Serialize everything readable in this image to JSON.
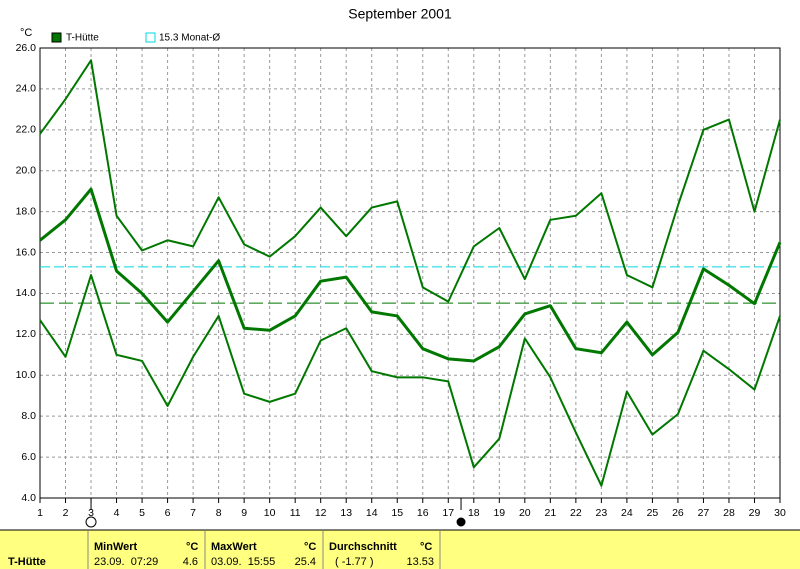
{
  "chart_data": {
    "type": "line",
    "title": "September 2001",
    "y_unit": "°C",
    "x": [
      1,
      2,
      3,
      4,
      5,
      6,
      7,
      8,
      9,
      10,
      11,
      12,
      13,
      14,
      15,
      16,
      17,
      18,
      19,
      20,
      21,
      22,
      23,
      24,
      25,
      26,
      27,
      28,
      29,
      30
    ],
    "xlim": [
      1,
      30
    ],
    "ylim": [
      4,
      26
    ],
    "yticks": [
      {
        "value": 4,
        "label": "4.0"
      },
      {
        "value": 6,
        "label": "6.0"
      },
      {
        "value": 8,
        "label": "8.0"
      },
      {
        "value": 10,
        "label": "10.0"
      },
      {
        "value": 12,
        "label": "12.0"
      },
      {
        "value": 14,
        "label": "14.0"
      },
      {
        "value": 16,
        "label": "16.0"
      },
      {
        "value": 18,
        "label": "18.0"
      },
      {
        "value": 20,
        "label": "20.0"
      },
      {
        "value": 22,
        "label": "22.0"
      },
      {
        "value": 24,
        "label": "24.0"
      },
      {
        "value": 26,
        "label": "26.0"
      }
    ],
    "grid": true,
    "series": [
      {
        "name": "T-Hütte",
        "color": "#007800",
        "values": [
          16.6,
          17.6,
          19.1,
          15.1,
          14.0,
          12.6,
          14.1,
          15.6,
          12.3,
          12.2,
          12.9,
          14.6,
          14.8,
          13.1,
          12.9,
          11.3,
          10.8,
          10.7,
          11.4,
          13.0,
          13.4,
          11.3,
          11.1,
          12.6,
          11.0,
          12.1,
          15.2,
          14.4,
          13.5,
          16.5
        ],
        "max": [
          21.8,
          23.5,
          25.4,
          17.8,
          16.1,
          16.6,
          16.3,
          18.7,
          16.4,
          15.8,
          16.8,
          18.2,
          16.8,
          18.2,
          18.5,
          14.3,
          13.6,
          16.3,
          17.2,
          14.7,
          17.6,
          17.8,
          18.9,
          14.9,
          14.3,
          18.3,
          22.0,
          22.5,
          18.0,
          22.5
        ],
        "min": [
          12.7,
          10.9,
          14.9,
          11.0,
          10.7,
          8.5,
          10.9,
          12.9,
          9.1,
          8.7,
          9.1,
          11.7,
          12.3,
          10.2,
          9.9,
          9.9,
          9.7,
          5.5,
          6.9,
          11.8,
          9.9,
          7.2,
          4.6,
          9.2,
          7.1,
          8.1,
          11.2,
          10.3,
          9.3,
          12.9
        ]
      }
    ],
    "reference": {
      "value": 15.3,
      "label": "15.3 Monat-Ø",
      "color": "#00d8e0"
    },
    "markers": [
      {
        "x": 3,
        "kind": "open"
      },
      {
        "x": 17.5,
        "kind": "filled"
      }
    ]
  },
  "stats": {
    "row_label": "T-Hütte",
    "min": {
      "header": "MinWert",
      "unit": "°C",
      "time": "23.09.  07:29",
      "value": 4.6
    },
    "max": {
      "header": "MaxWert",
      "unit": "°C",
      "time": "03.09.  15:55",
      "value": 25.4
    },
    "mean": {
      "header": "Durchschnitt",
      "unit": "°C",
      "time": "( -1.77 )",
      "value": 13.53
    }
  }
}
